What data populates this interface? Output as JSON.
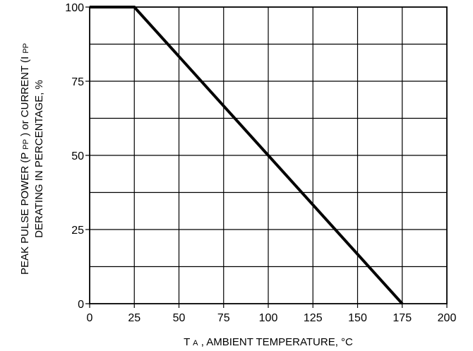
{
  "chart_data": {
    "type": "line",
    "title": "",
    "xlabel": {
      "main": "T",
      "sub": "A",
      "rest": ", AMBIENT TEMPERATURE, °C"
    },
    "ylabel": {
      "line1": {
        "p1": "PEAK PULSE POWER (P",
        "s1": "PP",
        "p2": ") or CURRENT (I",
        "s2": "PP"
      },
      "line2": "DERATING IN PERCENTAGE, %"
    },
    "x_ticks": [
      "0",
      "25",
      "50",
      "75",
      "100",
      "125",
      "150",
      "175",
      "200"
    ],
    "y_ticks": [
      "0",
      "25",
      "50",
      "75",
      "100"
    ],
    "xlim": [
      0,
      200
    ],
    "ylim": [
      0,
      100
    ],
    "grid": true,
    "legend": "none",
    "series": [
      {
        "x": [
          0,
          25,
          175
        ],
        "y": [
          100,
          100,
          0
        ]
      }
    ]
  }
}
